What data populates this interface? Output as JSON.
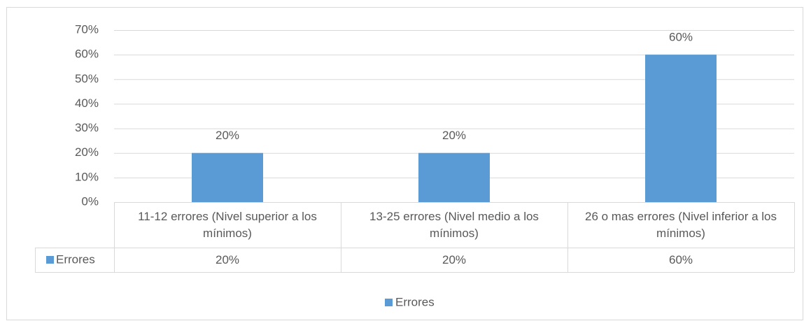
{
  "chart_data": {
    "type": "bar",
    "categories": [
      "11-12 errores (Nivel superior a los mínimos)",
      "13-25 errores (Nivel medio a los mínimos)",
      "26 o mas errores (Nivel inferior a los mínimos)"
    ],
    "series": [
      {
        "name": "Errores",
        "color": "#5b9bd5",
        "values": [
          20,
          20,
          60
        ],
        "value_labels": [
          "20%",
          "20%",
          "60%"
        ]
      }
    ],
    "ylim": [
      0,
      70
    ],
    "yticks": [
      {
        "value": 0,
        "label": "0%"
      },
      {
        "value": 10,
        "label": "10%"
      },
      {
        "value": 20,
        "label": "20%"
      },
      {
        "value": 30,
        "label": "30%"
      },
      {
        "value": 40,
        "label": "40%"
      },
      {
        "value": 50,
        "label": "50%"
      },
      {
        "value": 60,
        "label": "60%"
      },
      {
        "value": 70,
        "label": "70%"
      }
    ],
    "grid": true,
    "legend": "bottom",
    "data_table": true
  }
}
